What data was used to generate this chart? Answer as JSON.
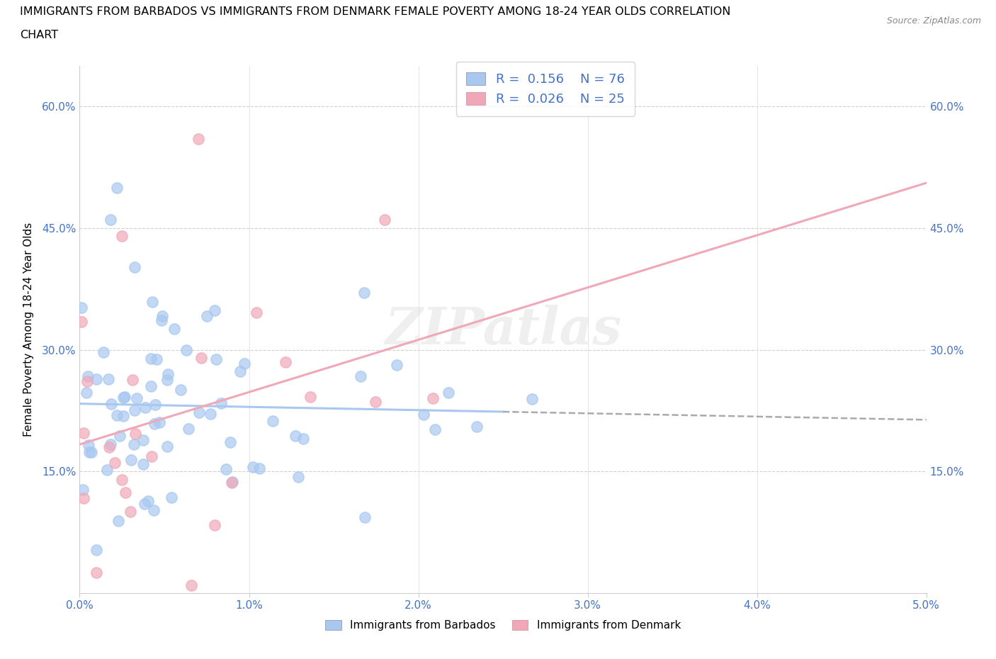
{
  "title_line1": "IMMIGRANTS FROM BARBADOS VS IMMIGRANTS FROM DENMARK FEMALE POVERTY AMONG 18-24 YEAR OLDS CORRELATION",
  "title_line2": "CHART",
  "source": "Source: ZipAtlas.com",
  "ylabel": "Female Poverty Among 18-24 Year Olds",
  "xlim": [
    0.0,
    0.05
  ],
  "ylim": [
    0.0,
    0.65
  ],
  "xtick_pos": [
    0.0,
    0.01,
    0.02,
    0.03,
    0.04,
    0.05
  ],
  "xtick_labels": [
    "0.0%",
    "1.0%",
    "2.0%",
    "3.0%",
    "4.0%",
    "5.0%"
  ],
  "ytick_pos": [
    0.0,
    0.15,
    0.3,
    0.45,
    0.6
  ],
  "ytick_labels": [
    "",
    "15.0%",
    "30.0%",
    "45.0%",
    "60.0%"
  ],
  "right_ytick_pos": [
    0.15,
    0.3,
    0.45,
    0.6
  ],
  "right_ytick_labels": [
    "15.0%",
    "30.0%",
    "45.0%",
    "60.0%"
  ],
  "color_barbados": "#a8c8f0",
  "color_denmark": "#f0a8b8",
  "color_text_blue": "#4472c4",
  "r_barbados": 0.156,
  "n_barbados": 76,
  "r_denmark": 0.026,
  "n_denmark": 25,
  "watermark": "ZIPatlas",
  "figsize": [
    14.06,
    9.3
  ],
  "dpi": 100
}
